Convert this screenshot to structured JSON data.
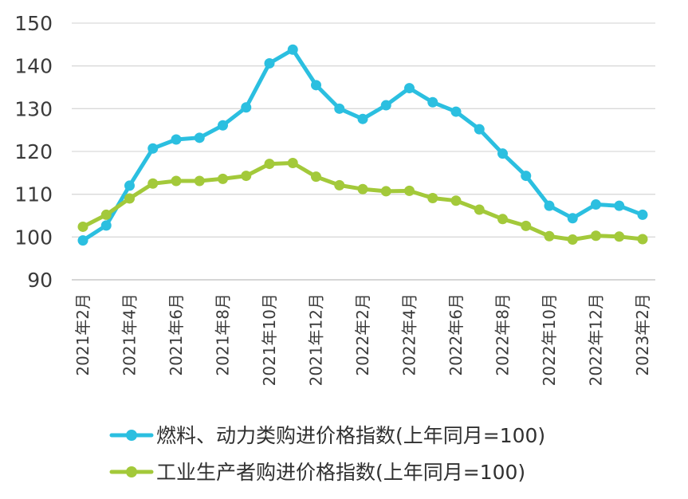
{
  "chart_data": {
    "type": "line",
    "title": "",
    "xlabel": "",
    "ylabel": "",
    "ylim": [
      90,
      150
    ],
    "yticks": [
      90,
      100,
      110,
      120,
      130,
      140,
      150
    ],
    "grid": true,
    "legend_position": "bottom",
    "categories": [
      "2021年2月",
      "2021年3月",
      "2021年4月",
      "2021年5月",
      "2021年6月",
      "2021年7月",
      "2021年8月",
      "2021年9月",
      "2021年10月",
      "2021年11月",
      "2021年12月",
      "2022年1月",
      "2022年2月",
      "2022年3月",
      "2022年4月",
      "2022年5月",
      "2022年6月",
      "2022年7月",
      "2022年8月",
      "2022年9月",
      "2022年10月",
      "2022年11月",
      "2022年12月",
      "2023年1月",
      "2023年2月"
    ],
    "xtick_labels": [
      "2021年2月",
      "2021年4月",
      "2021年6月",
      "2021年8月",
      "2021年10月",
      "2021年12月",
      "2022年2月",
      "2022年4月",
      "2022年6月",
      "2022年8月",
      "2022年10月",
      "2022年12月",
      "2023年2月"
    ],
    "series": [
      {
        "name": "燃料、动力类购进价格指数(上年同月=100)",
        "color": "#2bbfe0",
        "values": [
          99.2,
          102.7,
          112.0,
          120.7,
          122.8,
          123.2,
          126.1,
          130.3,
          140.6,
          143.8,
          135.5,
          130.0,
          127.6,
          130.8,
          134.8,
          131.5,
          129.3,
          125.2,
          119.5,
          114.3,
          107.3,
          104.4,
          107.6,
          107.3,
          105.2
        ]
      },
      {
        "name": "工业生产者购进价格指数(上年同月=100)",
        "color": "#a3c93a",
        "values": [
          102.4,
          105.2,
          109.0,
          112.5,
          113.1,
          113.1,
          113.6,
          114.3,
          117.1,
          117.3,
          114.1,
          112.1,
          111.2,
          110.7,
          110.8,
          109.1,
          108.5,
          106.4,
          104.2,
          102.6,
          100.2,
          99.4,
          100.3,
          100.1,
          99.5
        ]
      }
    ]
  }
}
